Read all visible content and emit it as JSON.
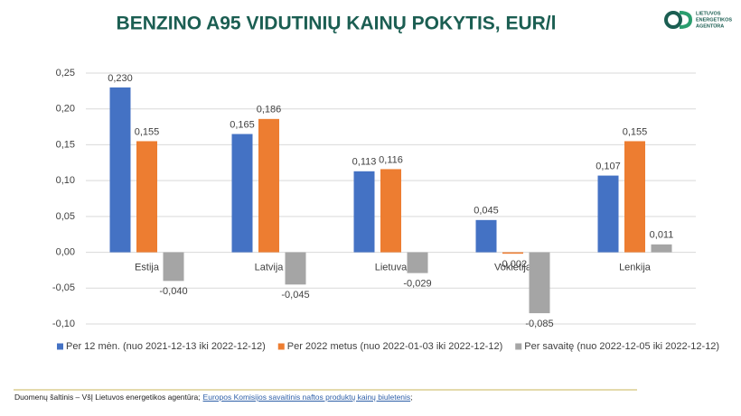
{
  "chart_data": {
    "type": "bar",
    "title": "BENZINO A95 VIDUTINIŲ KAINŲ POKYTIS, EUR/l",
    "categories": [
      "Estija",
      "Latvija",
      "Lietuva",
      "Vokietija",
      "Lenkija"
    ],
    "series": [
      {
        "name": "Per 12 mėn. (nuo 2021-12-13 iki 2022-12-12)",
        "color": "#4472c4",
        "values": [
          0.23,
          0.165,
          0.113,
          0.045,
          0.107
        ],
        "value_labels": [
          "0,230",
          "0,165",
          "0,113",
          "0,045",
          "0,107"
        ]
      },
      {
        "name": "Per 2022 metus (nuo 2022-01-03 iki 2022-12-12)",
        "color": "#ed7d31",
        "values": [
          0.155,
          0.186,
          0.116,
          -0.002,
          0.155
        ],
        "value_labels": [
          "0,155",
          "0,186",
          "0,116",
          "-0,002",
          "0,155"
        ]
      },
      {
        "name": "Per savaitę (nuo 2022-12-05 iki 2022-12-12)",
        "color": "#a5a5a5",
        "values": [
          -0.04,
          -0.045,
          -0.029,
          -0.085,
          0.011
        ],
        "value_labels": [
          "-0,040",
          "-0,045",
          "-0,029",
          "-0,085",
          "0,011"
        ]
      }
    ],
    "ylim": [
      -0.1,
      0.25
    ],
    "yticks": [
      {
        "value": -0.1,
        "label": "-0,10"
      },
      {
        "value": -0.05,
        "label": "-0,05"
      },
      {
        "value": 0,
        "label": "0,00"
      },
      {
        "value": 0.05,
        "label": "0,05"
      },
      {
        "value": 0.1,
        "label": "0,10"
      },
      {
        "value": 0.15,
        "label": "0,15"
      },
      {
        "value": 0.2,
        "label": "0,20"
      },
      {
        "value": 0.25,
        "label": "0,25"
      }
    ],
    "grid": true,
    "legend": "bottom"
  },
  "logo": [
    "LIETUVOS",
    "ENERGETIKOS",
    "AGENTŪRA"
  ],
  "footer": {
    "source": "Duomenų šaltinis – VšĮ Lietuvos energetikos agentūra;",
    "link": "Europos Komisijos savaitinis naftos produktų kainų biuletenis",
    "end": ";"
  }
}
